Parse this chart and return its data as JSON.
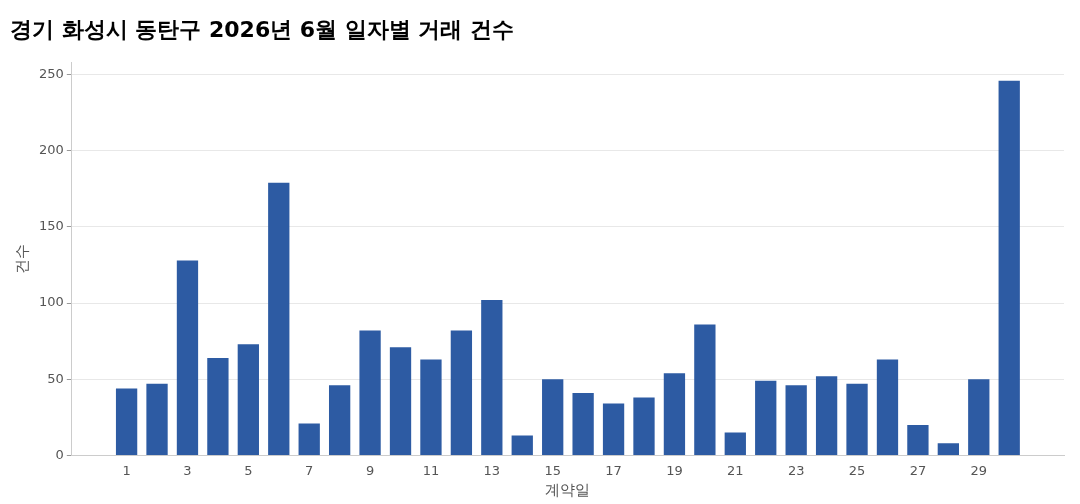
{
  "chart_data": {
    "type": "bar",
    "title": "경기 화성시 동탄구 2026년 6월 일자별 거래 건수",
    "xlabel": "계약일",
    "ylabel": "건수",
    "x": [
      1,
      2,
      3,
      4,
      5,
      6,
      7,
      8,
      9,
      10,
      11,
      12,
      13,
      14,
      15,
      16,
      17,
      18,
      19,
      20,
      21,
      22,
      23,
      24,
      25,
      26,
      27,
      28,
      29,
      30
    ],
    "xlim": [
      -0.8,
      31.8
    ],
    "xticks": [
      1,
      3,
      5,
      7,
      9,
      11,
      13,
      15,
      17,
      19,
      21,
      23,
      25,
      27,
      29
    ],
    "values": [
      44,
      47,
      128,
      64,
      73,
      179,
      21,
      46,
      82,
      71,
      63,
      82,
      102,
      13,
      50,
      41,
      34,
      38,
      54,
      86,
      15,
      49,
      46,
      52,
      47,
      63,
      20,
      8,
      50,
      246
    ],
    "color": "#2d5ba3",
    "ylim": [
      0,
      258
    ],
    "yticks": [
      0,
      50,
      100,
      150,
      200,
      250
    ],
    "grid": "y"
  }
}
